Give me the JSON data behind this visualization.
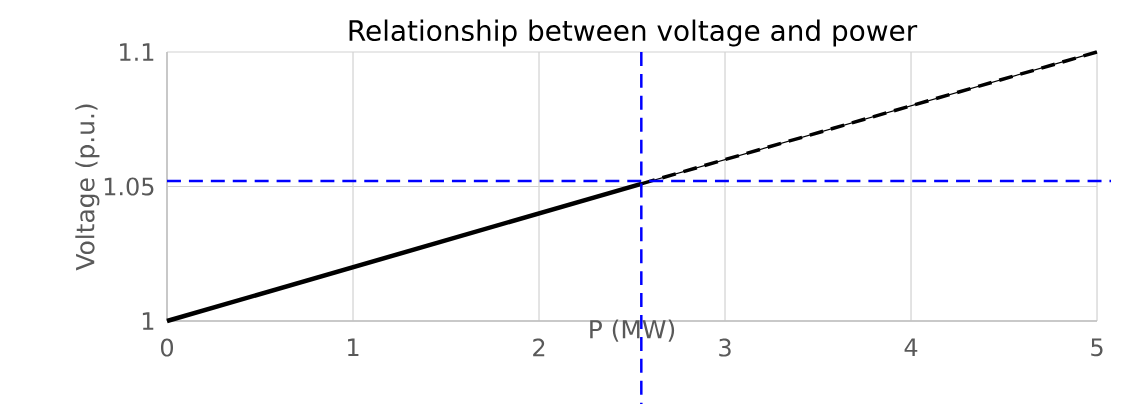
{
  "chart_data": {
    "type": "line",
    "title": "Relationship between voltage and power",
    "xlabel": "P (MW)",
    "ylabel": "Voltage (p.u.)",
    "xlim": [
      0,
      5
    ],
    "ylim": [
      1,
      1.1
    ],
    "xticks": [
      0,
      1,
      2,
      3,
      4,
      5
    ],
    "yticks": [
      1,
      1.05,
      1.1
    ],
    "grid": true,
    "series": [
      {
        "x": [
          0,
          5
        ],
        "values": [
          1,
          1.1
        ],
        "color": "#000000",
        "line_style": "solid"
      },
      {
        "x": [
          0,
          2.55
        ],
        "values": [
          1,
          1.051
        ],
        "color": "#000000",
        "line_style": "solid"
      },
      {
        "x": [
          2.55,
          5
        ],
        "values": [
          1.051,
          1.1
        ],
        "color": "#000000",
        "line_style": "dashed"
      }
    ],
    "ref_lines": [
      {
        "axis": "x",
        "value": 2.55,
        "color": "#0000ff",
        "line_style": "dashed"
      },
      {
        "axis": "y",
        "value": 1.052,
        "color": "#0000ff",
        "line_style": "dashed"
      }
    ]
  }
}
